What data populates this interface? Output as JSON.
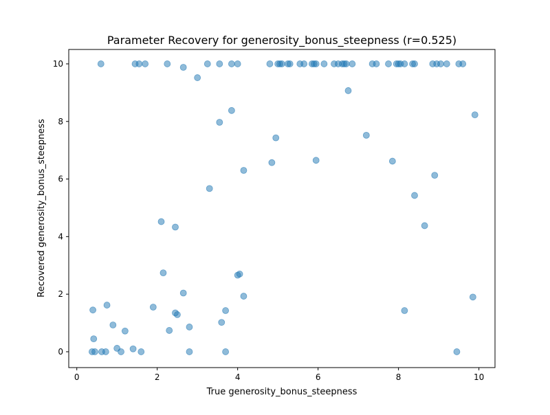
{
  "chart_data": {
    "type": "scatter",
    "title": "Parameter Recovery for generosity_bonus_steepness (r=0.525)",
    "xlabel": "True generosity_bonus_steepness",
    "ylabel": "Recovered generosity_bonus_steepness",
    "xlim": [
      -0.2,
      10.4
    ],
    "ylim": [
      -0.55,
      10.5
    ],
    "xticks": [
      0,
      2,
      4,
      6,
      8,
      10
    ],
    "yticks": [
      0,
      2,
      4,
      6,
      8,
      10
    ],
    "grid": false,
    "legend": "none",
    "marker_color": "#1f77b4",
    "marker_alpha": 0.5,
    "points": [
      {
        "x": 0.6,
        "y": 10.0
      },
      {
        "x": 1.45,
        "y": 10.0
      },
      {
        "x": 1.55,
        "y": 10.0
      },
      {
        "x": 1.7,
        "y": 10.0
      },
      {
        "x": 2.25,
        "y": 10.0
      },
      {
        "x": 2.65,
        "y": 9.88
      },
      {
        "x": 3.25,
        "y": 10.0
      },
      {
        "x": 3.55,
        "y": 10.0
      },
      {
        "x": 3.85,
        "y": 10.0
      },
      {
        "x": 4.0,
        "y": 10.0
      },
      {
        "x": 4.8,
        "y": 10.0
      },
      {
        "x": 5.0,
        "y": 10.0
      },
      {
        "x": 5.05,
        "y": 10.0
      },
      {
        "x": 5.1,
        "y": 10.0
      },
      {
        "x": 5.25,
        "y": 10.0
      },
      {
        "x": 5.3,
        "y": 10.0
      },
      {
        "x": 5.55,
        "y": 10.0
      },
      {
        "x": 5.65,
        "y": 10.0
      },
      {
        "x": 5.85,
        "y": 10.0
      },
      {
        "x": 5.9,
        "y": 10.0
      },
      {
        "x": 5.95,
        "y": 10.0
      },
      {
        "x": 6.15,
        "y": 10.0
      },
      {
        "x": 6.4,
        "y": 10.0
      },
      {
        "x": 6.5,
        "y": 10.0
      },
      {
        "x": 6.6,
        "y": 10.0
      },
      {
        "x": 6.65,
        "y": 10.0
      },
      {
        "x": 6.7,
        "y": 10.0
      },
      {
        "x": 6.85,
        "y": 10.0
      },
      {
        "x": 7.35,
        "y": 10.0
      },
      {
        "x": 7.45,
        "y": 10.0
      },
      {
        "x": 7.75,
        "y": 10.0
      },
      {
        "x": 7.95,
        "y": 10.0
      },
      {
        "x": 8.0,
        "y": 10.0
      },
      {
        "x": 8.05,
        "y": 10.0
      },
      {
        "x": 8.15,
        "y": 10.0
      },
      {
        "x": 8.35,
        "y": 10.0
      },
      {
        "x": 8.4,
        "y": 10.0
      },
      {
        "x": 8.85,
        "y": 10.0
      },
      {
        "x": 8.95,
        "y": 10.0
      },
      {
        "x": 9.05,
        "y": 10.0
      },
      {
        "x": 9.2,
        "y": 10.0
      },
      {
        "x": 9.5,
        "y": 10.0
      },
      {
        "x": 9.6,
        "y": 10.0
      },
      {
        "x": 3.0,
        "y": 9.52
      },
      {
        "x": 6.75,
        "y": 9.07
      },
      {
        "x": 3.85,
        "y": 8.38
      },
      {
        "x": 9.9,
        "y": 8.23
      },
      {
        "x": 3.55,
        "y": 7.97
      },
      {
        "x": 7.2,
        "y": 7.52
      },
      {
        "x": 4.95,
        "y": 7.43
      },
      {
        "x": 5.95,
        "y": 6.65
      },
      {
        "x": 7.85,
        "y": 6.62
      },
      {
        "x": 4.85,
        "y": 6.57
      },
      {
        "x": 4.15,
        "y": 6.3
      },
      {
        "x": 8.9,
        "y": 6.13
      },
      {
        "x": 3.3,
        "y": 5.67
      },
      {
        "x": 8.4,
        "y": 5.43
      },
      {
        "x": 2.1,
        "y": 4.52
      },
      {
        "x": 8.65,
        "y": 4.38
      },
      {
        "x": 2.45,
        "y": 4.33
      },
      {
        "x": 2.15,
        "y": 2.74
      },
      {
        "x": 4.05,
        "y": 2.7
      },
      {
        "x": 4.0,
        "y": 2.66
      },
      {
        "x": 2.65,
        "y": 2.04
      },
      {
        "x": 4.15,
        "y": 1.93
      },
      {
        "x": 9.85,
        "y": 1.9
      },
      {
        "x": 0.75,
        "y": 1.62
      },
      {
        "x": 1.9,
        "y": 1.55
      },
      {
        "x": 0.4,
        "y": 1.45
      },
      {
        "x": 3.7,
        "y": 1.43
      },
      {
        "x": 8.15,
        "y": 1.43
      },
      {
        "x": 2.45,
        "y": 1.35
      },
      {
        "x": 2.5,
        "y": 1.29
      },
      {
        "x": 3.6,
        "y": 1.02
      },
      {
        "x": 0.9,
        "y": 0.93
      },
      {
        "x": 2.8,
        "y": 0.86
      },
      {
        "x": 2.3,
        "y": 0.74
      },
      {
        "x": 1.2,
        "y": 0.72
      },
      {
        "x": 0.42,
        "y": 0.45
      },
      {
        "x": 1.0,
        "y": 0.12
      },
      {
        "x": 1.4,
        "y": 0.1
      },
      {
        "x": 0.38,
        "y": 0.0
      },
      {
        "x": 0.45,
        "y": 0.0
      },
      {
        "x": 0.62,
        "y": 0.0
      },
      {
        "x": 0.72,
        "y": 0.0
      },
      {
        "x": 1.1,
        "y": 0.0
      },
      {
        "x": 1.6,
        "y": 0.0
      },
      {
        "x": 2.8,
        "y": 0.0
      },
      {
        "x": 3.7,
        "y": 0.0
      },
      {
        "x": 9.45,
        "y": 0.0
      }
    ]
  }
}
